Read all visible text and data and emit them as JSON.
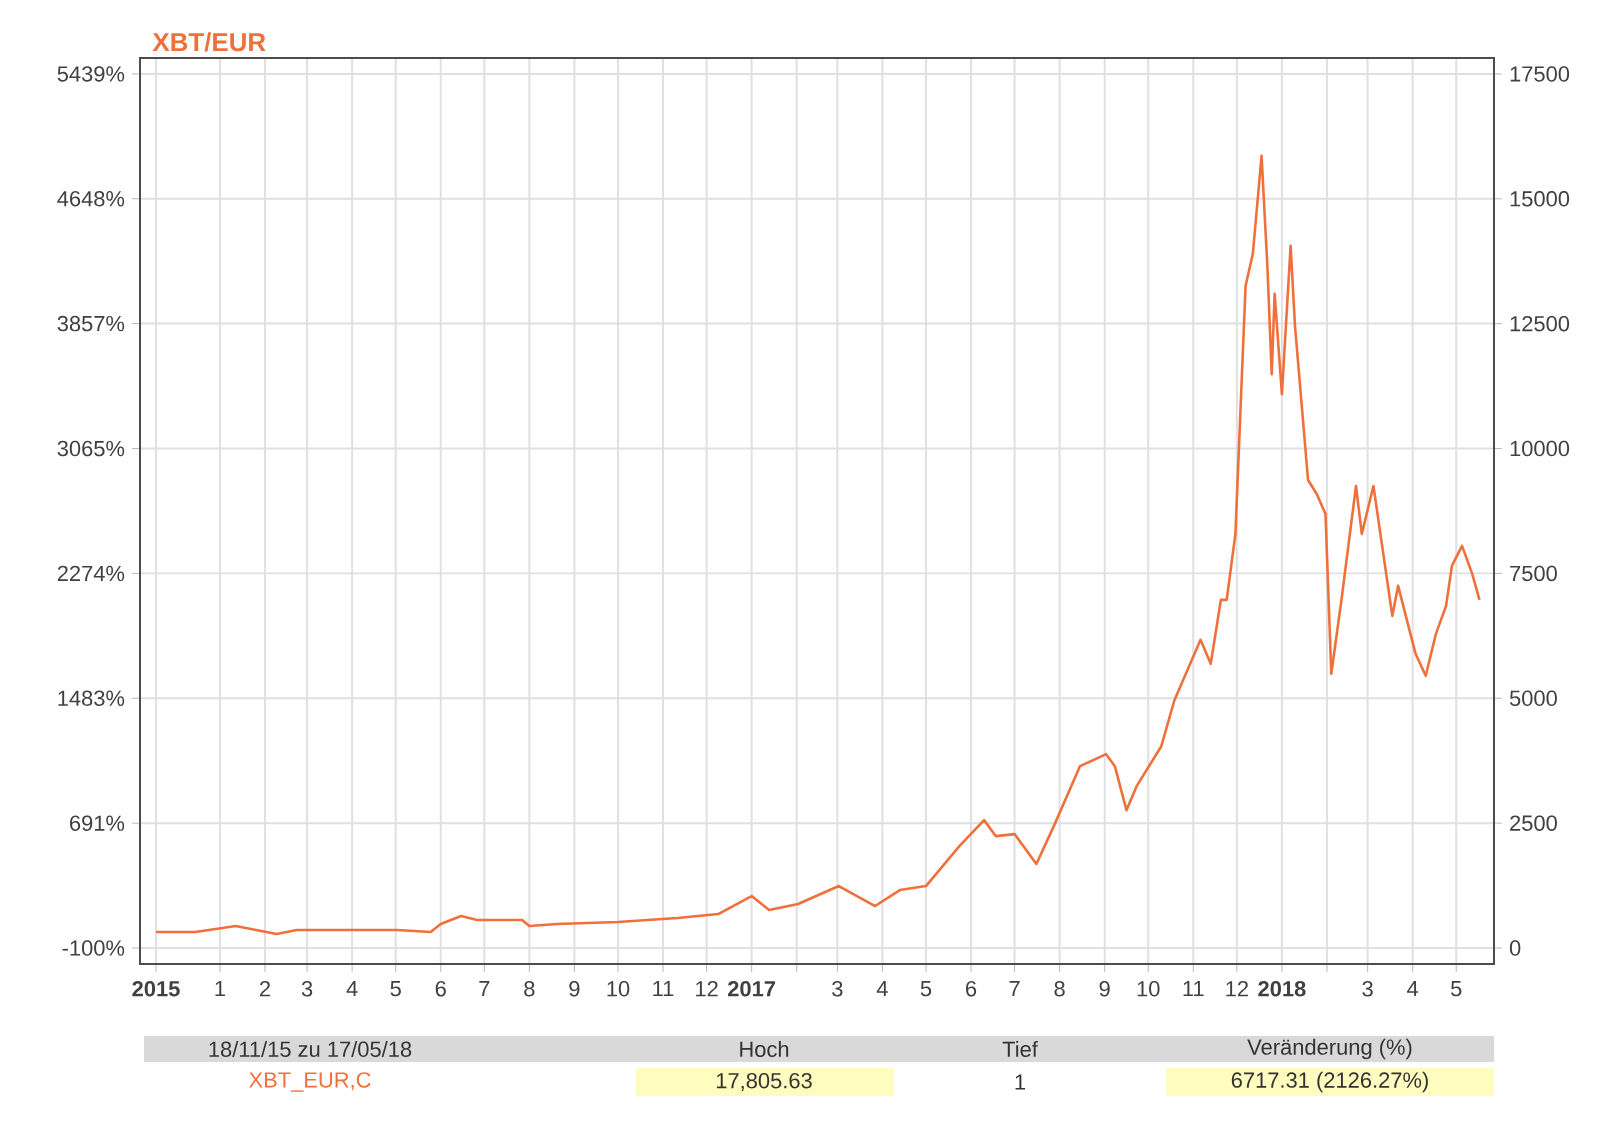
{
  "chart_data": {
    "type": "line",
    "title": "XBT/EUR",
    "x": [
      "2015-11-18",
      "2015-12-15",
      "2016-01-12",
      "2016-02-02",
      "2016-02-09",
      "2016-02-23",
      "2016-05-02",
      "2016-05-25",
      "2016-06-01",
      "2016-06-15",
      "2016-06-26",
      "2016-07-27",
      "2016-08-01",
      "2016-08-20",
      "2016-10-01",
      "2016-11-11",
      "2016-12-09",
      "2017-01-01",
      "2017-01-13",
      "2017-02-02",
      "2017-03-02",
      "2017-03-27",
      "2017-04-13",
      "2017-05-01",
      "2017-05-24",
      "2017-06-10",
      "2017-06-18",
      "2017-07-01",
      "2017-07-16",
      "2017-07-28",
      "2017-08-15",
      "2017-09-02",
      "2017-09-08",
      "2017-09-16",
      "2017-09-23",
      "2017-10-10",
      "2017-10-19",
      "2017-11-06",
      "2017-11-13",
      "2017-11-20",
      "2017-11-24",
      "2017-11-30",
      "2017-12-07",
      "2017-12-12",
      "2017-12-18",
      "2017-12-22",
      "2017-12-25",
      "2017-12-27",
      "2018-01-01",
      "2018-01-07",
      "2018-01-10",
      "2018-01-19",
      "2018-01-25",
      "2018-01-31",
      "2018-02-04",
      "2018-02-11",
      "2018-02-21",
      "2018-02-25",
      "2018-03-05",
      "2018-03-11",
      "2018-03-18",
      "2018-03-22",
      "2018-04-03",
      "2018-04-10",
      "2018-04-17",
      "2018-04-24",
      "2018-04-28",
      "2018-05-05",
      "2018-05-12",
      "2018-05-17"
    ],
    "series": [
      {
        "color": "#f0703c",
        "axis": "y2",
        "values": [
          320,
          320,
          440,
          320,
          280,
          360,
          360,
          320,
          480,
          640,
          560,
          560,
          440,
          480,
          520,
          600,
          680,
          1040,
          760,
          880,
          1240,
          840,
          1160,
          1240,
          2040,
          2560,
          2240,
          2280,
          1680,
          2440,
          3640,
          3880,
          3640,
          2760,
          3240,
          4040,
          4960,
          6170,
          5690,
          6970,
          6970,
          8290,
          13260,
          13900,
          15860,
          13660,
          11490,
          13100,
          11090,
          14060,
          12460,
          9370,
          9090,
          8690,
          5490,
          6970,
          9250,
          8290,
          9250,
          8050,
          6650,
          7250,
          5890,
          5450,
          6290,
          6850,
          7650,
          8050,
          7490,
          6970
        ]
      }
    ],
    "xlim": [
      "2015-11-07",
      "2018-05-27"
    ],
    "xticks": [
      {
        "value": "2015-11-18",
        "label": "2015"
      },
      {
        "value": "2016-01-01",
        "label": "1"
      },
      {
        "value": "2016-02-01",
        "label": "2"
      },
      {
        "value": "2016-03-01",
        "label": "3"
      },
      {
        "value": "2016-04-01",
        "label": "4"
      },
      {
        "value": "2016-05-01",
        "label": "5"
      },
      {
        "value": "2016-06-01",
        "label": "6"
      },
      {
        "value": "2016-07-01",
        "label": "7"
      },
      {
        "value": "2016-08-01",
        "label": "8"
      },
      {
        "value": "2016-09-01",
        "label": "9"
      },
      {
        "value": "2016-10-01",
        "label": "10"
      },
      {
        "value": "2016-11-01",
        "label": "11"
      },
      {
        "value": "2016-12-01",
        "label": "12"
      },
      {
        "value": "2017-01-01",
        "label": "2017"
      },
      {
        "value": "2017-02-01",
        "label": null
      },
      {
        "value": "2017-03-01",
        "label": "3"
      },
      {
        "value": "2017-04-01",
        "label": "4"
      },
      {
        "value": "2017-05-01",
        "label": "5"
      },
      {
        "value": "2017-06-01",
        "label": "6"
      },
      {
        "value": "2017-07-01",
        "label": "7"
      },
      {
        "value": "2017-08-01",
        "label": "8"
      },
      {
        "value": "2017-09-01",
        "label": "9"
      },
      {
        "value": "2017-10-01",
        "label": "10"
      },
      {
        "value": "2017-11-01",
        "label": "11"
      },
      {
        "value": "2017-12-01",
        "label": "12"
      },
      {
        "value": "2018-01-01",
        "label": "2018"
      },
      {
        "value": "2018-02-01",
        "label": null
      },
      {
        "value": "2018-03-01",
        "label": "3"
      },
      {
        "value": "2018-04-01",
        "label": "4"
      },
      {
        "value": "2018-05-01",
        "label": "5"
      }
    ],
    "ylim": [
      -201,
      5540
    ],
    "yticks": [
      {
        "value": -100,
        "label": "-100%"
      },
      {
        "value": 691,
        "label": "691%"
      },
      {
        "value": 1483,
        "label": "1483%"
      },
      {
        "value": 2274,
        "label": "2274%"
      },
      {
        "value": 3065,
        "label": "3065%"
      },
      {
        "value": 3857,
        "label": "3857%"
      },
      {
        "value": 4648,
        "label": "4648%"
      },
      {
        "value": 5439,
        "label": "5439%"
      }
    ],
    "y2lim": [
      -320,
      17820
    ],
    "y2ticks": [
      0,
      2500,
      5000,
      7500,
      10000,
      12500,
      15000,
      17500
    ],
    "grid": true,
    "marker": "none",
    "line_style": "solid",
    "annotations": [
      "18/11/15 zu 17/05/18",
      "Hoch",
      "Tief",
      "Veränderung (%)",
      "XBT_EUR,C",
      "17,805.63",
      "1",
      "6717.31 (2126.27%)"
    ]
  }
}
